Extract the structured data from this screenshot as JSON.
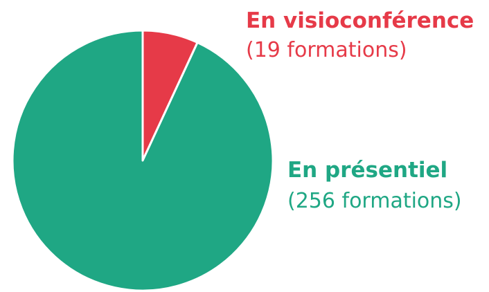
{
  "chart_data": {
    "type": "pie",
    "categories": [
      "En visioconférence",
      "En présentiel"
    ],
    "values": [
      19,
      256
    ],
    "value_labels": [
      "(19 formations)",
      "(256 formations)"
    ],
    "colors": [
      "#e63a48",
      "#1fa784"
    ]
  }
}
